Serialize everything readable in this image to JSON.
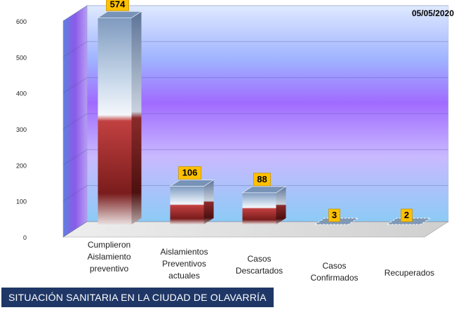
{
  "date_label": "05/05/2020",
  "footer_title": "SITUACIÓN SANITARIA EN LA CIUDAD DE OLAVARRÍA",
  "colors": {
    "label_box": "#ffc000",
    "banner": "#1f3766",
    "bar_top": "#8fa9c8",
    "bar_bottom": "#7a1c1c"
  },
  "chart_data": {
    "type": "bar",
    "categories": [
      "Cumplieron\nAislamiento\npreventivo",
      "Aislamientos\nPreventivos\nactuales",
      "Casos\nDescartados",
      "Casos\nConfirmados",
      "Recuperados"
    ],
    "values": [
      574,
      106,
      88,
      3,
      2
    ],
    "data_labels": [
      "574",
      "106",
      "88",
      "3",
      "2"
    ],
    "ylim": [
      0,
      600
    ],
    "yticks": [
      "0",
      "100",
      "200",
      "300",
      "400",
      "500",
      "600"
    ],
    "grid": true,
    "three_d": true
  }
}
